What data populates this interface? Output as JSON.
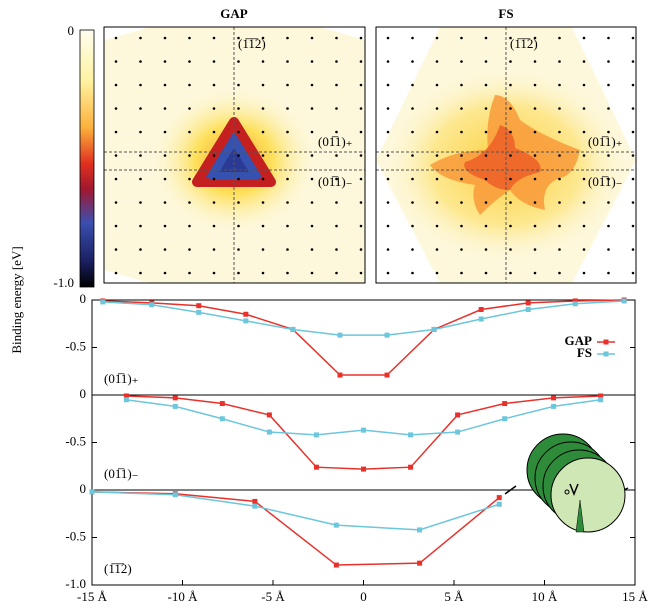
{
  "ylabel": "Binding energy [eV]",
  "colorbar": {
    "range": [
      -1,
      0
    ],
    "ticks": [
      0,
      {
        "value": -1,
        "label": "-1.0"
      }
    ]
  },
  "maps": [
    {
      "title": "GAP",
      "labels": [
        "(1̅1̅2)",
        "(01̅1)₊",
        "(01̅1)₋"
      ]
    },
    {
      "title": "FS",
      "labels": [
        "(1̅1̅2)",
        "(01̅1)₊",
        "(01̅1)₋"
      ]
    }
  ],
  "chart_data": [
    {
      "type": "line",
      "annotation": "(01̅1)₊",
      "legend": "center right",
      "x": [
        -14.4,
        -11.7,
        -9.1,
        -6.5,
        -3.9,
        -1.3,
        1.3,
        3.9,
        6.5,
        9.1,
        11.7,
        14.4
      ],
      "series": [
        {
          "name": "GAP",
          "color": "#e8312b",
          "values": [
            -0.01,
            -0.03,
            -0.06,
            -0.15,
            -0.31,
            -0.79,
            -0.79,
            -0.31,
            -0.1,
            -0.03,
            -0.01,
            0
          ]
        },
        {
          "name": "FS",
          "color": "#6cc6dc",
          "values": [
            -0.02,
            -0.05,
            -0.13,
            -0.22,
            -0.31,
            -0.37,
            -0.37,
            -0.31,
            -0.2,
            -0.1,
            -0.04,
            -0.01
          ]
        }
      ],
      "xlim": [
        -15,
        15
      ],
      "ylim": [
        -1,
        0
      ],
      "yticks": [
        0,
        -0.5
      ]
    },
    {
      "type": "line",
      "annotation": "(01̅1)₋",
      "x": [
        -13.1,
        -10.4,
        -7.8,
        -5.2,
        -2.6,
        0,
        2.6,
        5.2,
        7.8,
        10.5,
        13.1
      ],
      "series": [
        {
          "name": "GAP",
          "color": "#e8312b",
          "values": [
            -0.01,
            -0.03,
            -0.09,
            -0.21,
            -0.76,
            -0.78,
            -0.76,
            -0.21,
            -0.09,
            -0.03,
            -0.01
          ]
        },
        {
          "name": "FS",
          "color": "#6cc6dc",
          "values": [
            -0.05,
            -0.12,
            -0.25,
            -0.39,
            -0.42,
            -0.37,
            -0.42,
            -0.39,
            -0.25,
            -0.12,
            -0.05
          ]
        }
      ],
      "xlim": [
        -15,
        15
      ],
      "ylim": [
        -1,
        0
      ],
      "yticks": [
        0,
        -0.5
      ]
    },
    {
      "type": "line",
      "annotation": "(1̅1̅2)",
      "x": [
        -15,
        -10.4,
        -6,
        -1.5,
        3.1,
        7.5
      ],
      "series": [
        {
          "name": "GAP",
          "color": "#e8312b",
          "values": [
            -0.02,
            -0.04,
            -0.12,
            -0.79,
            -0.77,
            -0.08
          ]
        },
        {
          "name": "FS",
          "color": "#6cc6dc",
          "values": [
            -0.02,
            -0.05,
            -0.17,
            -0.37,
            -0.42,
            -0.15
          ]
        }
      ],
      "xlim": [
        -15,
        15
      ],
      "ylim": [
        -1,
        0
      ],
      "yticks": [
        0,
        -0.5,
        {
          "value": -1,
          "label": "-1.0"
        }
      ],
      "xticks": [
        {
          "value": -15,
          "label": "-15 Å"
        },
        {
          "value": -10,
          "label": "-10 Å"
        },
        {
          "value": -5,
          "label": "-5 Å"
        },
        0,
        {
          "value": 5,
          "label": "5 Å"
        },
        {
          "value": 10,
          "label": "10 Å"
        },
        {
          "value": 15,
          "label": "15 Å"
        }
      ]
    }
  ]
}
